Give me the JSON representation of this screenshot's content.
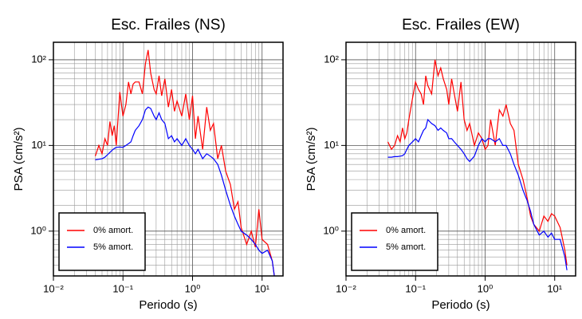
{
  "chart_data": [
    {
      "type": "line",
      "title": "Esc. Frailes (NS)",
      "x_label": "Periodo (s)",
      "y_label": "PSA (cm/s²)",
      "log_x": true,
      "log_y": true,
      "grid": true,
      "legend_position": "lower left",
      "xlim": [
        0.01,
        20
      ],
      "ylim": [
        0.3,
        160
      ],
      "xticks": [
        {
          "value": 0.01,
          "label": "10⁻²"
        },
        {
          "value": 0.1,
          "label": "10⁻¹"
        },
        {
          "value": 1,
          "label": "10⁰"
        },
        {
          "value": 10,
          "label": "10¹"
        }
      ],
      "yticks": [
        {
          "value": 1,
          "label": "10⁰"
        },
        {
          "value": 10,
          "label": "10¹"
        },
        {
          "value": 100,
          "label": "10²"
        }
      ],
      "x_minor_ticks": [
        0.02,
        0.03,
        0.04,
        0.05,
        0.06,
        0.07,
        0.08,
        0.09,
        0.2,
        0.3,
        0.4,
        0.5,
        0.6,
        0.7,
        0.8,
        0.9,
        2,
        3,
        4,
        5,
        6,
        7,
        8,
        9,
        20
      ],
      "y_minor_ticks": [
        0.3,
        0.4,
        0.5,
        0.6,
        0.7,
        0.8,
        0.9,
        2,
        3,
        4,
        5,
        6,
        7,
        8,
        9,
        20,
        30,
        40,
        50,
        60,
        70,
        80,
        90
      ],
      "x": [
        0.04,
        0.045,
        0.05,
        0.055,
        0.06,
        0.065,
        0.07,
        0.075,
        0.08,
        0.09,
        0.1,
        0.11,
        0.12,
        0.13,
        0.14,
        0.15,
        0.17,
        0.19,
        0.21,
        0.23,
        0.25,
        0.28,
        0.3,
        0.33,
        0.36,
        0.4,
        0.45,
        0.5,
        0.55,
        0.6,
        0.7,
        0.8,
        0.9,
        1.0,
        1.1,
        1.2,
        1.4,
        1.6,
        1.8,
        2.0,
        2.3,
        2.6,
        3.0,
        3.5,
        4.0,
        4.5,
        5,
        6,
        7,
        8,
        9,
        10,
        12,
        14,
        15
      ],
      "series": [
        {
          "name": "0% amort.",
          "color": "#ff0000",
          "values": [
            7.5,
            10,
            8,
            12,
            10,
            19,
            13,
            17,
            10,
            42,
            22,
            30,
            55,
            40,
            52,
            55,
            55,
            40,
            90,
            130,
            70,
            45,
            40,
            65,
            38,
            60,
            28,
            45,
            25,
            33,
            22,
            40,
            20,
            38,
            12,
            22,
            9,
            28,
            15,
            18,
            7,
            10,
            5,
            3.5,
            1.8,
            2.2,
            1.1,
            0.7,
            1.0,
            0.65,
            1.8,
            0.8,
            0.7,
            0.45,
            0.3
          ]
        },
        {
          "name": "5% amort.",
          "color": "#0000ff",
          "values": [
            6.8,
            6.9,
            7,
            7.3,
            7.8,
            8.3,
            8.8,
            9.2,
            9.5,
            9.6,
            9.5,
            10,
            10.5,
            11,
            13,
            15,
            17,
            20,
            26,
            28,
            27,
            22,
            20,
            24,
            20,
            18,
            12,
            13,
            11,
            12,
            10,
            12,
            10,
            9,
            8,
            9,
            7,
            8,
            7.5,
            7,
            6,
            4.5,
            3,
            2,
            1.5,
            1.2,
            1.0,
            0.9,
            0.8,
            0.7,
            0.6,
            0.55,
            0.6,
            0.45,
            0.3
          ]
        }
      ]
    },
    {
      "type": "line",
      "title": "Esc. Frailes (EW)",
      "x_label": "Periodo (s)",
      "y_label": "PSA (cm/s²)",
      "log_x": true,
      "log_y": true,
      "grid": true,
      "legend_position": "lower left",
      "xlim": [
        0.01,
        20
      ],
      "ylim": [
        0.3,
        160
      ],
      "xticks": [
        {
          "value": 0.01,
          "label": "10⁻²"
        },
        {
          "value": 0.1,
          "label": "10⁻¹"
        },
        {
          "value": 1,
          "label": "10⁰"
        },
        {
          "value": 10,
          "label": "10¹"
        }
      ],
      "yticks": [
        {
          "value": 1,
          "label": "10⁰"
        },
        {
          "value": 10,
          "label": "10¹"
        },
        {
          "value": 100,
          "label": "10²"
        }
      ],
      "x_minor_ticks": [
        0.02,
        0.03,
        0.04,
        0.05,
        0.06,
        0.07,
        0.08,
        0.09,
        0.2,
        0.3,
        0.4,
        0.5,
        0.6,
        0.7,
        0.8,
        0.9,
        2,
        3,
        4,
        5,
        6,
        7,
        8,
        9,
        20
      ],
      "y_minor_ticks": [
        0.3,
        0.4,
        0.5,
        0.6,
        0.7,
        0.8,
        0.9,
        2,
        3,
        4,
        5,
        6,
        7,
        8,
        9,
        20,
        30,
        40,
        50,
        60,
        70,
        80,
        90
      ],
      "x": [
        0.04,
        0.045,
        0.05,
        0.055,
        0.06,
        0.065,
        0.07,
        0.075,
        0.08,
        0.09,
        0.1,
        0.11,
        0.12,
        0.13,
        0.14,
        0.15,
        0.17,
        0.19,
        0.21,
        0.23,
        0.25,
        0.28,
        0.3,
        0.33,
        0.36,
        0.4,
        0.45,
        0.5,
        0.55,
        0.6,
        0.7,
        0.8,
        0.9,
        1.0,
        1.1,
        1.2,
        1.4,
        1.6,
        1.8,
        2.0,
        2.3,
        2.6,
        3.0,
        3.5,
        4.0,
        4.5,
        5,
        6,
        7,
        8,
        9,
        10,
        12,
        14,
        15
      ],
      "series": [
        {
          "name": "0% amort.",
          "color": "#ff0000",
          "values": [
            11,
            9,
            10,
            13,
            11,
            16,
            12,
            14,
            20,
            35,
            55,
            45,
            40,
            30,
            65,
            50,
            40,
            100,
            65,
            80,
            60,
            45,
            30,
            60,
            40,
            25,
            55,
            20,
            15,
            18,
            10,
            14,
            12,
            9,
            10,
            20,
            10,
            26,
            22,
            30,
            18,
            15,
            6,
            4,
            2.5,
            1.5,
            1.2,
            1.0,
            1.5,
            1.3,
            1.6,
            1.5,
            1.1,
            0.6,
            0.4
          ]
        },
        {
          "name": "5% amort.",
          "color": "#0000ff",
          "values": [
            7.3,
            7.3,
            7.4,
            7.4,
            7.5,
            7.6,
            8,
            9,
            10,
            11,
            12,
            11,
            13,
            15,
            16,
            20,
            18,
            17,
            15,
            16,
            15,
            14,
            12,
            12,
            11,
            10,
            9,
            8,
            7,
            6.5,
            7.5,
            10,
            12,
            11,
            12,
            12,
            11,
            12,
            10,
            10,
            8,
            6,
            4.5,
            3,
            2.3,
            1.7,
            1.2,
            0.9,
            1.0,
            0.85,
            0.95,
            0.8,
            0.8,
            0.5,
            0.35
          ]
        }
      ]
    }
  ]
}
